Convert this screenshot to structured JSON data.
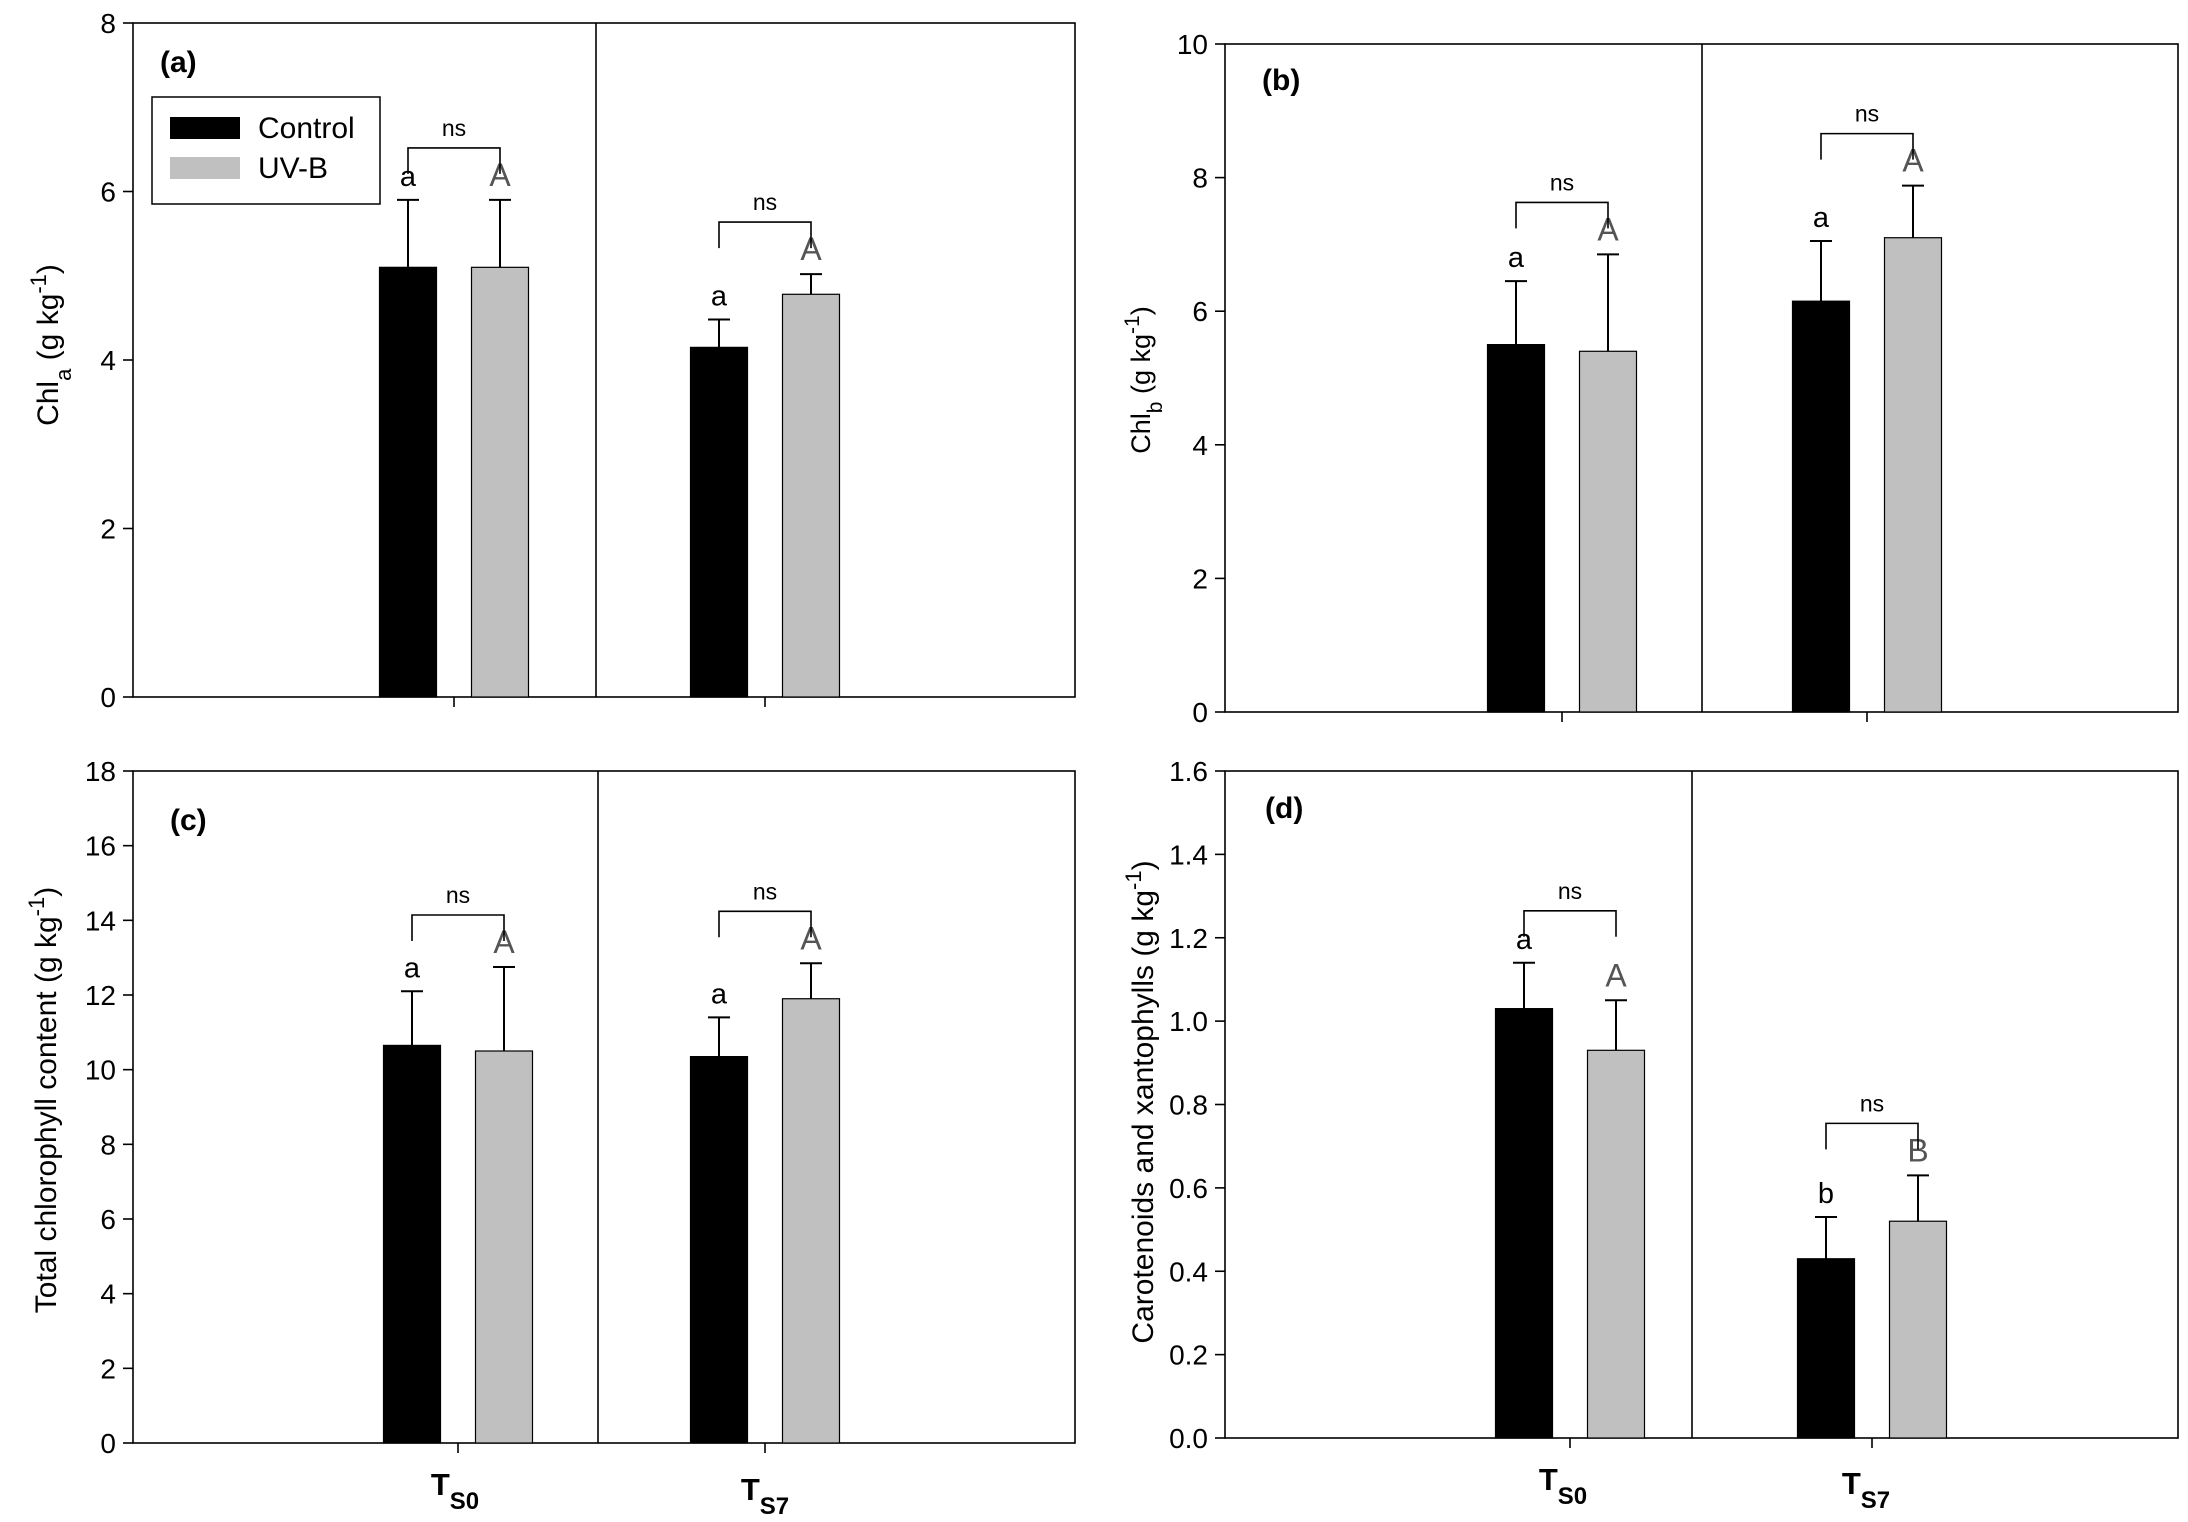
{
  "legend": {
    "items": [
      {
        "label": "Control",
        "color": "#000000"
      },
      {
        "label": "UV-B",
        "color": "#c0c0c0"
      }
    ]
  },
  "x_categories": [
    {
      "main": "T",
      "sub": "S0"
    },
    {
      "main": "T",
      "sub": "S7"
    }
  ],
  "chart_data": [
    {
      "type": "bar",
      "panel": "(a)",
      "ylabel": {
        "main": "Chl",
        "sub": "a",
        "unit_pre": " (g kg",
        "unit_sup": "-1",
        "unit_post": ")"
      },
      "ylim": [
        0,
        8
      ],
      "yticks": [
        "0",
        "2",
        "4",
        "6",
        "8"
      ],
      "categories": [
        "TS0",
        "TS7"
      ],
      "series": [
        {
          "name": "Control",
          "values": [
            5.1,
            4.15
          ],
          "errors": [
            0.8,
            0.33
          ],
          "letters": [
            "a",
            "a"
          ]
        },
        {
          "name": "UV-B",
          "values": [
            5.1,
            4.78
          ],
          "errors": [
            0.8,
            0.24
          ],
          "letters": [
            "A",
            "A"
          ]
        }
      ],
      "brackets": [
        "ns",
        "ns"
      ],
      "legend_shown": true
    },
    {
      "type": "bar",
      "panel": "(b)",
      "ylabel": {
        "main": "Chl",
        "sub": "b",
        "unit_pre": " (g kg",
        "unit_sup": "-1",
        "unit_post": ")"
      },
      "ylim": [
        0,
        10
      ],
      "yticks": [
        "0",
        "2",
        "4",
        "6",
        "8",
        "10"
      ],
      "categories": [
        "TS0",
        "TS7"
      ],
      "series": [
        {
          "name": "Control",
          "values": [
            5.5,
            6.15
          ],
          "errors": [
            0.95,
            0.9
          ],
          "letters": [
            "a",
            "a"
          ]
        },
        {
          "name": "UV-B",
          "values": [
            5.4,
            7.1
          ],
          "errors": [
            1.45,
            0.78
          ],
          "letters": [
            "A",
            "A"
          ]
        }
      ],
      "brackets": [
        "ns",
        "ns"
      ],
      "legend_shown": false
    },
    {
      "type": "bar",
      "panel": "(c)",
      "ylabel": {
        "main": "Total chlorophyll content",
        "sub": "",
        "unit_pre": " (g kg",
        "unit_sup": "-1",
        "unit_post": ")"
      },
      "ylim": [
        0,
        18
      ],
      "yticks": [
        "0",
        "2",
        "4",
        "6",
        "8",
        "10",
        "12",
        "14",
        "16",
        "18"
      ],
      "categories": [
        "TS0",
        "TS7"
      ],
      "series": [
        {
          "name": "Control",
          "values": [
            10.65,
            10.35
          ],
          "errors": [
            1.45,
            1.05
          ],
          "letters": [
            "a",
            "a"
          ]
        },
        {
          "name": "UV-B",
          "values": [
            10.5,
            11.9
          ],
          "errors": [
            2.25,
            0.95
          ],
          "letters": [
            "A",
            "A"
          ]
        }
      ],
      "brackets": [
        "ns",
        "ns"
      ],
      "legend_shown": false
    },
    {
      "type": "bar",
      "panel": "(d)",
      "ylabel": {
        "main": "Carotenoids and xantophylls",
        "sub": "",
        "unit_pre": " (g kg",
        "unit_sup": "-1",
        "unit_post": ")"
      },
      "ylim": [
        0,
        1.6
      ],
      "yticks": [
        "0.0",
        "0.2",
        "0.4",
        "0.6",
        "0.8",
        "1.0",
        "1.2",
        "1.4",
        "1.6"
      ],
      "categories": [
        "TS0",
        "TS7"
      ],
      "series": [
        {
          "name": "Control",
          "values": [
            1.03,
            0.43
          ],
          "errors": [
            0.11,
            0.1
          ],
          "letters": [
            "a",
            "b"
          ]
        },
        {
          "name": "UV-B",
          "values": [
            0.93,
            0.52
          ],
          "errors": [
            0.12,
            0.11
          ],
          "letters": [
            "A",
            "B"
          ]
        }
      ],
      "brackets": [
        "ns",
        "ns"
      ],
      "legend_shown": false
    }
  ]
}
